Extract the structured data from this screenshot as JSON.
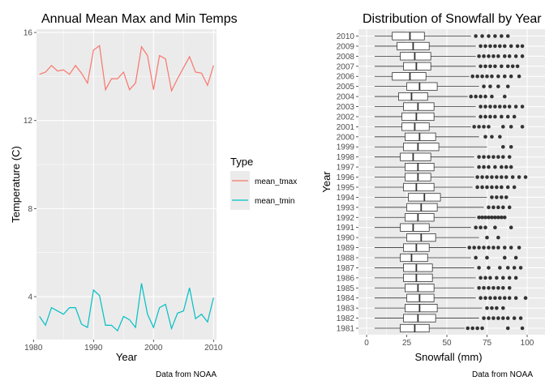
{
  "chart_data": [
    {
      "type": "line",
      "title": "Annual Mean Max and Min Temps",
      "xlabel": "Year",
      "ylabel": "Temperature (C)",
      "caption": "Data from NOAA",
      "xlim": [
        1980.5,
        2010.5
      ],
      "ylim": [
        2.05,
        16.15
      ],
      "x_ticks": [
        1980,
        1990,
        2000,
        2010
      ],
      "y_ticks": [
        4,
        8,
        12,
        16
      ],
      "grid": true,
      "legend": {
        "title": "Type",
        "placement": "right",
        "entries": [
          {
            "name": "mean_tmax",
            "color": "#F8766D"
          },
          {
            "name": "mean_tmin",
            "color": "#00BFC4"
          }
        ]
      },
      "x": [
        1981,
        1982,
        1983,
        1984,
        1985,
        1986,
        1987,
        1988,
        1989,
        1990,
        1991,
        1992,
        1993,
        1994,
        1995,
        1996,
        1997,
        1998,
        1999,
        2000,
        2001,
        2002,
        2003,
        2004,
        2005,
        2006,
        2007,
        2008,
        2009,
        2010
      ],
      "series": [
        {
          "name": "mean_tmax",
          "color": "#F8766D",
          "values": [
            14.1,
            14.2,
            14.5,
            14.25,
            14.3,
            14.1,
            14.5,
            14.15,
            13.7,
            15.2,
            15.4,
            13.4,
            13.9,
            13.9,
            14.2,
            13.4,
            13.7,
            15.35,
            14.95,
            13.4,
            14.95,
            14.8,
            13.35,
            13.9,
            14.4,
            14.9,
            14.2,
            14.15,
            13.6,
            14.5
          ]
        },
        {
          "name": "mean_tmin",
          "color": "#00BFC4",
          "values": [
            3.1,
            2.7,
            3.5,
            3.35,
            3.2,
            3.5,
            3.5,
            2.75,
            2.6,
            4.3,
            4.05,
            2.7,
            2.7,
            2.45,
            3.1,
            2.95,
            2.6,
            4.6,
            3.2,
            2.6,
            3.5,
            3.65,
            2.55,
            3.25,
            3.35,
            4.4,
            3.0,
            3.2,
            2.85,
            3.95
          ]
        }
      ]
    },
    {
      "type": "box",
      "orientation": "horizontal",
      "title": "Distribution of Snowfall by Year",
      "xlabel": "Snowfall (mm)",
      "ylabel": "Year",
      "caption": "Data from NOAA",
      "xlim": [
        0,
        100
      ],
      "x_ticks": [
        0,
        25,
        50,
        75,
        100
      ],
      "grid": true,
      "categories": [
        "2010",
        "2009",
        "2008",
        "2007",
        "2006",
        "2005",
        "2004",
        "2003",
        "2002",
        "2001",
        "2000",
        "1999",
        "1998",
        "1997",
        "1996",
        "1995",
        "1994",
        "1993",
        "1992",
        "1991",
        "1990",
        "1989",
        "1988",
        "1987",
        "1986",
        "1985",
        "1984",
        "1983",
        "1982",
        "1981"
      ],
      "boxes": [
        {
          "year": "2010",
          "min": 5,
          "q1": 16,
          "median": 27,
          "q3": 36,
          "max": 65,
          "outliers": [
            68,
            72,
            76,
            80,
            84,
            88
          ]
        },
        {
          "year": "2009",
          "min": 5,
          "q1": 19,
          "median": 29,
          "q3": 39,
          "max": 68,
          "outliers": [
            71,
            74,
            77,
            80,
            83,
            86,
            90,
            94,
            97
          ]
        },
        {
          "year": "2008",
          "min": 5,
          "q1": 21,
          "median": 30,
          "q3": 40,
          "max": 68,
          "outliers": [
            70,
            73,
            76,
            79,
            82,
            86,
            89,
            93,
            97
          ]
        },
        {
          "year": "2007",
          "min": 5,
          "q1": 23,
          "median": 31,
          "q3": 40,
          "max": 68,
          "outliers": [
            71,
            74,
            77,
            80,
            84,
            88,
            91,
            94
          ]
        },
        {
          "year": "2006",
          "min": 5,
          "q1": 16,
          "median": 27,
          "q3": 37,
          "max": 64,
          "outliers": [
            66,
            69,
            72,
            75,
            78,
            82,
            86,
            90,
            95
          ]
        },
        {
          "year": "2005",
          "min": 5,
          "q1": 25,
          "median": 33,
          "q3": 44,
          "max": 70,
          "outliers": [
            73,
            77,
            82,
            88
          ]
        },
        {
          "year": "2004",
          "min": 5,
          "q1": 20,
          "median": 28,
          "q3": 38,
          "max": 63,
          "outliers": [
            65,
            68,
            71,
            74,
            78,
            86
          ]
        },
        {
          "year": "2003",
          "min": 5,
          "q1": 23,
          "median": 32,
          "q3": 42,
          "max": 68,
          "outliers": [
            71,
            74,
            77,
            80,
            83,
            86,
            89,
            93,
            97
          ]
        },
        {
          "year": "2002",
          "min": 5,
          "q1": 22,
          "median": 31,
          "q3": 42,
          "max": 68,
          "outliers": [
            71,
            74,
            77,
            80,
            84,
            88,
            92
          ]
        },
        {
          "year": "2001",
          "min": 5,
          "q1": 22,
          "median": 30,
          "q3": 39,
          "max": 65,
          "outliers": [
            67,
            70,
            73,
            76,
            85,
            90,
            97
          ]
        },
        {
          "year": "2000",
          "min": 5,
          "q1": 24,
          "median": 33,
          "q3": 43,
          "max": 70,
          "outliers": [
            74,
            78,
            83
          ]
        },
        {
          "year": "1999",
          "min": 5,
          "q1": 23,
          "median": 32,
          "q3": 45,
          "max": 75,
          "outliers": [
            85,
            90
          ]
        },
        {
          "year": "1998",
          "min": 5,
          "q1": 21,
          "median": 29,
          "q3": 40,
          "max": 67,
          "outliers": [
            70,
            73,
            76,
            79,
            82,
            85,
            89
          ]
        },
        {
          "year": "1997",
          "min": 5,
          "q1": 24,
          "median": 32,
          "q3": 42,
          "max": 67,
          "outliers": [
            70,
            73,
            76,
            80,
            84,
            87,
            90
          ]
        },
        {
          "year": "1996",
          "min": 5,
          "q1": 24,
          "median": 32,
          "q3": 40,
          "max": 67,
          "outliers": [
            69,
            72,
            75,
            78,
            81,
            84,
            87,
            91,
            95,
            99
          ]
        },
        {
          "year": "1995",
          "min": 5,
          "q1": 23,
          "median": 31,
          "q3": 42,
          "max": 66,
          "outliers": [
            69,
            72,
            75,
            78,
            81,
            84,
            88,
            92
          ]
        },
        {
          "year": "1994",
          "min": 5,
          "q1": 26,
          "median": 36,
          "q3": 46,
          "max": 75,
          "outliers": [
            78,
            81,
            84,
            87
          ]
        },
        {
          "year": "1993",
          "min": 5,
          "q1": 25,
          "median": 34,
          "q3": 44,
          "max": 73,
          "outliers": [
            76,
            79,
            82,
            85,
            89
          ]
        },
        {
          "year": "1992",
          "min": 5,
          "q1": 24,
          "median": 32,
          "q3": 42,
          "max": 68,
          "outliers": [
            70,
            72,
            74,
            76,
            78,
            80,
            82,
            84,
            86
          ]
        },
        {
          "year": "1991",
          "min": 5,
          "q1": 21,
          "median": 29,
          "q3": 39,
          "max": 65,
          "outliers": [
            68,
            71,
            74,
            80,
            90
          ]
        },
        {
          "year": "1990",
          "min": 5,
          "q1": 25,
          "median": 34,
          "q3": 43,
          "max": 70,
          "outliers": [
            75,
            82
          ]
        },
        {
          "year": "1989",
          "min": 5,
          "q1": 23,
          "median": 31,
          "q3": 39,
          "max": 62,
          "outliers": [
            64,
            67,
            70,
            73,
            76,
            79,
            82,
            86,
            90,
            95
          ]
        },
        {
          "year": "1988",
          "min": 5,
          "q1": 21,
          "median": 28,
          "q3": 38,
          "max": 65,
          "outliers": [
            68,
            75,
            86,
            93
          ]
        },
        {
          "year": "1987",
          "min": 5,
          "q1": 23,
          "median": 31,
          "q3": 41,
          "max": 67,
          "outliers": [
            70,
            76,
            83,
            88,
            92,
            96
          ]
        },
        {
          "year": "1986",
          "min": 5,
          "q1": 23,
          "median": 31,
          "q3": 41,
          "max": 68,
          "outliers": [
            71,
            74,
            77,
            81,
            85,
            89,
            93
          ]
        },
        {
          "year": "1985",
          "min": 5,
          "q1": 24,
          "median": 32,
          "q3": 42,
          "max": 67,
          "outliers": [
            70,
            73,
            76,
            79,
            82,
            85,
            89
          ]
        },
        {
          "year": "1984",
          "min": 5,
          "q1": 25,
          "median": 33,
          "q3": 42,
          "max": 68,
          "outliers": [
            71,
            74,
            77,
            80,
            83,
            86,
            89,
            93,
            99
          ]
        },
        {
          "year": "1983",
          "min": 5,
          "q1": 24,
          "median": 33,
          "q3": 44,
          "max": 72,
          "outliers": [
            75,
            78,
            81,
            85
          ]
        },
        {
          "year": "1982",
          "min": 5,
          "q1": 23,
          "median": 32,
          "q3": 43,
          "max": 70,
          "outliers": [
            73,
            76,
            79,
            82,
            85,
            88,
            92,
            96
          ]
        },
        {
          "year": "1981",
          "min": 5,
          "q1": 21,
          "median": 30,
          "q3": 39,
          "max": 61,
          "outliers": [
            63,
            66,
            69,
            72,
            88,
            97
          ]
        }
      ]
    }
  ]
}
